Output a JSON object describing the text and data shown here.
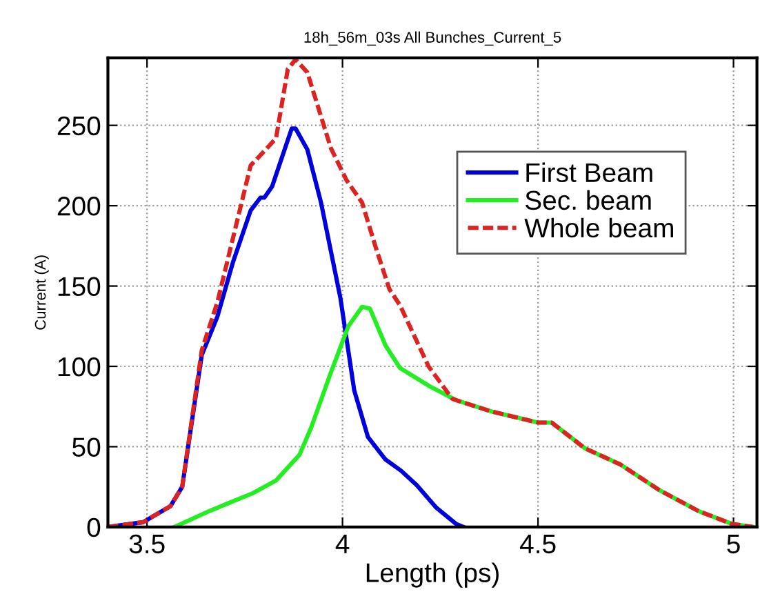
{
  "chart_data": {
    "type": "line",
    "title": "18h_56m_03s All Bunches_Current_5",
    "xlabel": "Length (ps)",
    "ylabel": "Current (A)",
    "xlim": [
      3.4,
      5.06
    ],
    "ylim": [
      0,
      292
    ],
    "xticks": [
      3.5,
      4,
      4.5,
      5
    ],
    "yticks": [
      0,
      50,
      100,
      150,
      200,
      250
    ],
    "grid": true,
    "legend": "top right",
    "series": [
      {
        "name": "First Beam",
        "color": "#0000dd",
        "line_style": "solid",
        "x": [
          3.4,
          3.49,
          3.56,
          3.59,
          3.64,
          3.68,
          3.72,
          3.765,
          3.79,
          3.8,
          3.82,
          3.87,
          3.88,
          3.91,
          3.945,
          3.995,
          4.03,
          4.065,
          4.11,
          4.15,
          4.19,
          4.24,
          4.29,
          4.31
        ],
        "values": [
          0,
          3,
          13,
          25,
          107,
          131,
          165,
          197,
          205,
          205,
          212,
          248,
          248,
          235,
          202,
          142,
          85,
          56,
          42,
          35,
          26,
          12,
          2,
          0
        ]
      },
      {
        "name": "Sec. beam",
        "color": "#22ee22",
        "line_style": "solid",
        "x": [
          3.57,
          3.66,
          3.71,
          3.77,
          3.83,
          3.89,
          3.92,
          3.97,
          4.015,
          4.05,
          4.07,
          4.11,
          4.147,
          4.22,
          4.29,
          4.38,
          4.5,
          4.535,
          4.62,
          4.71,
          4.81,
          4.91,
          4.995,
          5.05
        ],
        "values": [
          0,
          10,
          15,
          21,
          29,
          45,
          62,
          96,
          125,
          137,
          136,
          113,
          99,
          88,
          79,
          72,
          65,
          65,
          49,
          39,
          23,
          10,
          2,
          0
        ]
      },
      {
        "name": "Whole beam",
        "color": "#dd2222",
        "line_style": "dashed",
        "x": [
          3.4,
          3.49,
          3.56,
          3.59,
          3.64,
          3.68,
          3.72,
          3.765,
          3.8,
          3.83,
          3.86,
          3.88,
          3.91,
          3.97,
          4.01,
          4.05,
          4.085,
          4.12,
          4.147,
          4.22,
          4.28,
          4.29,
          4.38,
          4.5,
          4.535,
          4.62,
          4.71,
          4.81,
          4.91,
          4.995,
          5.05
        ],
        "values": [
          0,
          3,
          13,
          25,
          110,
          140,
          180,
          225,
          234,
          242,
          285,
          291,
          283,
          236,
          216,
          202,
          174,
          148,
          138,
          100,
          80,
          79,
          72,
          65,
          65,
          49,
          39,
          23,
          10,
          2,
          0
        ]
      }
    ]
  }
}
